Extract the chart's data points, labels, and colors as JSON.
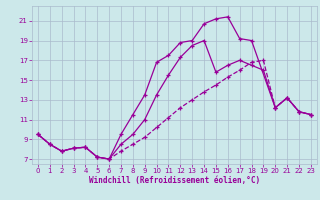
{
  "xlabel": "Windchill (Refroidissement éolien,°C)",
  "xlim": [
    -0.5,
    23.5
  ],
  "ylim": [
    6.5,
    22.5
  ],
  "xticks": [
    0,
    1,
    2,
    3,
    4,
    5,
    6,
    7,
    8,
    9,
    10,
    11,
    12,
    13,
    14,
    15,
    16,
    17,
    18,
    19,
    20,
    21,
    22,
    23
  ],
  "yticks": [
    7,
    9,
    11,
    13,
    15,
    17,
    19,
    21
  ],
  "bg_color": "#cce8ea",
  "line_color": "#990099",
  "grid_color": "#aabbcc",
  "curve_top_x": [
    0,
    1,
    2,
    3,
    4,
    5,
    6,
    7,
    8,
    9,
    10,
    11,
    12,
    13,
    14,
    15,
    16,
    17,
    18,
    20,
    21,
    22,
    23
  ],
  "curve_top_y": [
    9.5,
    8.5,
    7.8,
    8.1,
    8.2,
    7.2,
    7.0,
    9.5,
    11.5,
    13.5,
    16.8,
    17.5,
    18.8,
    19.0,
    20.7,
    21.2,
    21.4,
    19.2,
    19.0,
    12.2,
    13.2,
    11.8,
    11.5
  ],
  "curve_mid_x": [
    0,
    1,
    2,
    3,
    4,
    5,
    6,
    7,
    8,
    9,
    10,
    11,
    12,
    13,
    14,
    15,
    16,
    17,
    18,
    19,
    20,
    21,
    22,
    23
  ],
  "curve_mid_y": [
    9.5,
    8.5,
    7.8,
    8.1,
    8.2,
    7.2,
    7.0,
    8.5,
    9.5,
    11.0,
    13.5,
    15.5,
    17.3,
    18.5,
    19.0,
    15.8,
    16.5,
    17.0,
    16.5,
    16.0,
    12.2,
    13.2,
    11.8,
    11.5
  ],
  "curve_bot_x": [
    0,
    1,
    2,
    3,
    4,
    5,
    6,
    7,
    8,
    9,
    10,
    11,
    12,
    13,
    14,
    15,
    16,
    17,
    18,
    19,
    20,
    21,
    22,
    23
  ],
  "curve_bot_y": [
    9.5,
    8.5,
    7.8,
    8.1,
    8.2,
    7.2,
    7.0,
    7.8,
    8.5,
    9.2,
    10.2,
    11.2,
    12.2,
    13.0,
    13.8,
    14.5,
    15.3,
    16.0,
    16.8,
    17.0,
    12.2,
    13.2,
    11.8,
    11.5
  ]
}
